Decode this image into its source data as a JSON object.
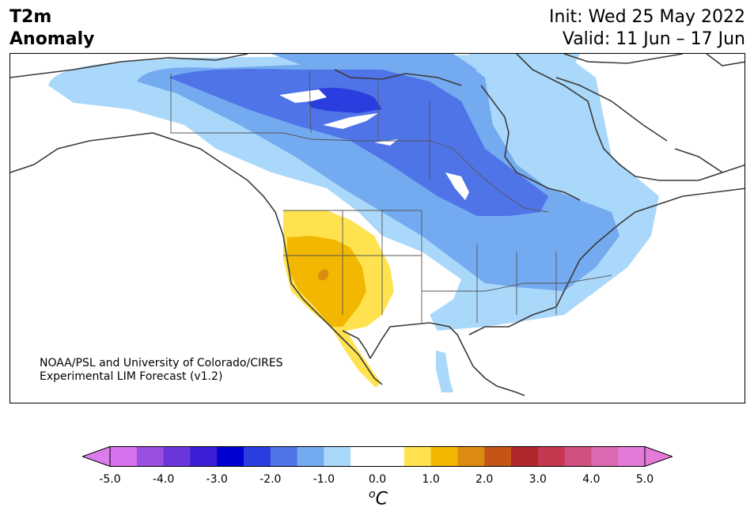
{
  "title": {
    "line1": "T2m",
    "line2": "Anomaly"
  },
  "init": {
    "line1": "Init: Wed 25 May 2022",
    "line2": "Valid: 11 Jun – 17 Jun"
  },
  "credit": {
    "line1": "NOAA/PSL and University of Colorado/CIRES",
    "line2": "Experimental LIM Forecast (v1.2)"
  },
  "colorbar": {
    "unit_base": "C",
    "unit_sup": "o",
    "ticks": [
      "-5.0",
      "-4.0",
      "-3.0",
      "-2.0",
      "-1.0",
      "0.0",
      "1.0",
      "2.0",
      "3.0",
      "4.0",
      "5.0"
    ],
    "colors": [
      "#d672ee",
      "#9a4fe0",
      "#6a36dc",
      "#3a1fd6",
      "#0000d2",
      "#2a3ee0",
      "#4f74e8",
      "#74aaf0",
      "#aad8fa",
      "#ffffff",
      "#ffffff",
      "#ffe24f",
      "#f2b700",
      "#dc8a10",
      "#c45516",
      "#b0262a",
      "#c63850",
      "#d05080",
      "#dc68b0",
      "#e47ad8"
    ],
    "left_extend": "#dc7cec",
    "right_extend": "#e47ad8"
  },
  "map_colors": {
    "very_light_blue": "#aad8fa",
    "light_blue": "#74aaf0",
    "blue": "#4f74e8",
    "dark_blue": "#2a3ee0",
    "yellow": "#ffe24f",
    "orange": "#f2b700",
    "dark_orange": "#dc8a10"
  }
}
